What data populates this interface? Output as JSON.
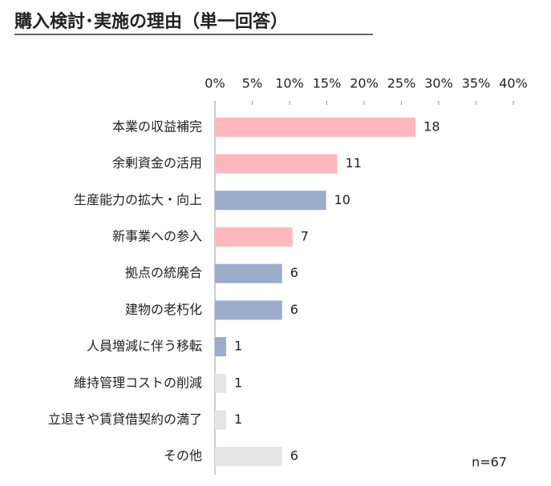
{
  "chart_data": {
    "type": "bar",
    "orientation": "horizontal",
    "title": "購入検討･実施の理由（単一回答）",
    "annotation": "n=67",
    "categories": [
      "本業の収益補完",
      "余剰資金の活用",
      "生産能力の拡大・向上",
      "新事業への参入",
      "拠点の統廃合",
      "建物の老朽化",
      "人員増減に伴う移転",
      "維持管理コストの削減",
      "立退きや賃貸借契約の満了",
      "その他"
    ],
    "values": [
      26.9,
      16.4,
      14.9,
      10.4,
      9.0,
      9.0,
      1.5,
      1.5,
      1.5,
      9.0
    ],
    "counts": [
      18,
      11,
      10,
      7,
      6,
      6,
      1,
      1,
      1,
      6
    ],
    "colors": [
      "#ffb7bd",
      "#ffb7bd",
      "#9aadcc",
      "#ffb7bd",
      "#9aadcc",
      "#9aadcc",
      "#9aadcc",
      "#e4e4e4",
      "#e4e4e4",
      "#e4e4e4"
    ],
    "xlim": [
      0,
      40
    ],
    "xticks": [
      {
        "value": 0,
        "label": "0%"
      },
      {
        "value": 5,
        "label": "5%"
      },
      {
        "value": 10,
        "label": "10%"
      },
      {
        "value": 15,
        "label": "15%"
      },
      {
        "value": 20,
        "label": "20%"
      },
      {
        "value": 25,
        "label": "25%"
      },
      {
        "value": 30,
        "label": "30%"
      },
      {
        "value": 35,
        "label": "35%"
      },
      {
        "value": 40,
        "label": "40%"
      }
    ]
  }
}
